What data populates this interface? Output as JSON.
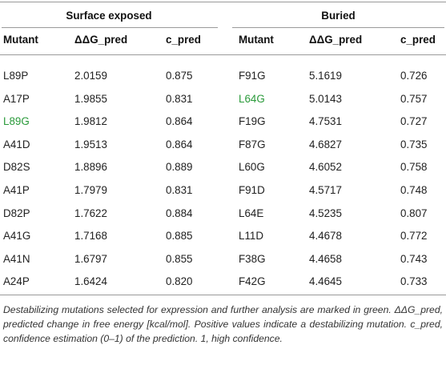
{
  "groups": {
    "left_title": "Surface exposed",
    "right_title": "Buried"
  },
  "headers": {
    "mutant": "Mutant",
    "ddg": "ΔΔG_pred",
    "c": "c_pred"
  },
  "left_rows": [
    {
      "mutant": "L89P",
      "ddg": "2.0159",
      "c": "0.875",
      "selected": false
    },
    {
      "mutant": "A17P",
      "ddg": "1.9855",
      "c": "0.831",
      "selected": false
    },
    {
      "mutant": "L89G",
      "ddg": "1.9812",
      "c": "0.864",
      "selected": true
    },
    {
      "mutant": "A41D",
      "ddg": "1.9513",
      "c": "0.864",
      "selected": false
    },
    {
      "mutant": "D82S",
      "ddg": "1.8896",
      "c": "0.889",
      "selected": false
    },
    {
      "mutant": "A41P",
      "ddg": "1.7979",
      "c": "0.831",
      "selected": false
    },
    {
      "mutant": "D82P",
      "ddg": "1.7622",
      "c": "0.884",
      "selected": false
    },
    {
      "mutant": "A41G",
      "ddg": "1.7168",
      "c": "0.885",
      "selected": false
    },
    {
      "mutant": "A41N",
      "ddg": "1.6797",
      "c": "0.855",
      "selected": false
    },
    {
      "mutant": "A24P",
      "ddg": "1.6424",
      "c": "0.820",
      "selected": false
    }
  ],
  "right_rows": [
    {
      "mutant": "F91G",
      "ddg": "5.1619",
      "c": "0.726",
      "selected": false
    },
    {
      "mutant": "L64G",
      "ddg": "5.0143",
      "c": "0.757",
      "selected": true
    },
    {
      "mutant": "F19G",
      "ddg": "4.7531",
      "c": "0.727",
      "selected": false
    },
    {
      "mutant": "F87G",
      "ddg": "4.6827",
      "c": "0.735",
      "selected": false
    },
    {
      "mutant": "L60G",
      "ddg": "4.6052",
      "c": "0.758",
      "selected": false
    },
    {
      "mutant": "F91D",
      "ddg": "4.5717",
      "c": "0.748",
      "selected": false
    },
    {
      "mutant": "L64E",
      "ddg": "4.5235",
      "c": "0.807",
      "selected": false
    },
    {
      "mutant": "L11D",
      "ddg": "4.4678",
      "c": "0.772",
      "selected": false
    },
    {
      "mutant": "F38G",
      "ddg": "4.4658",
      "c": "0.743",
      "selected": false
    },
    {
      "mutant": "F42G",
      "ddg": "4.4645",
      "c": "0.733",
      "selected": false
    }
  ],
  "footnote": "Destabilizing mutations selected for expression and further analysis are marked in green. ΔΔG_pred, predicted change in free energy [kcal/mol]. Positive values indicate a destabilizing mutation. c_pred, confidence estimation (0–1) of the prediction. 1, high confidence.",
  "colors": {
    "selected": "#2a9a3a",
    "rule": "#9a9a9a",
    "text": "#222222"
  }
}
